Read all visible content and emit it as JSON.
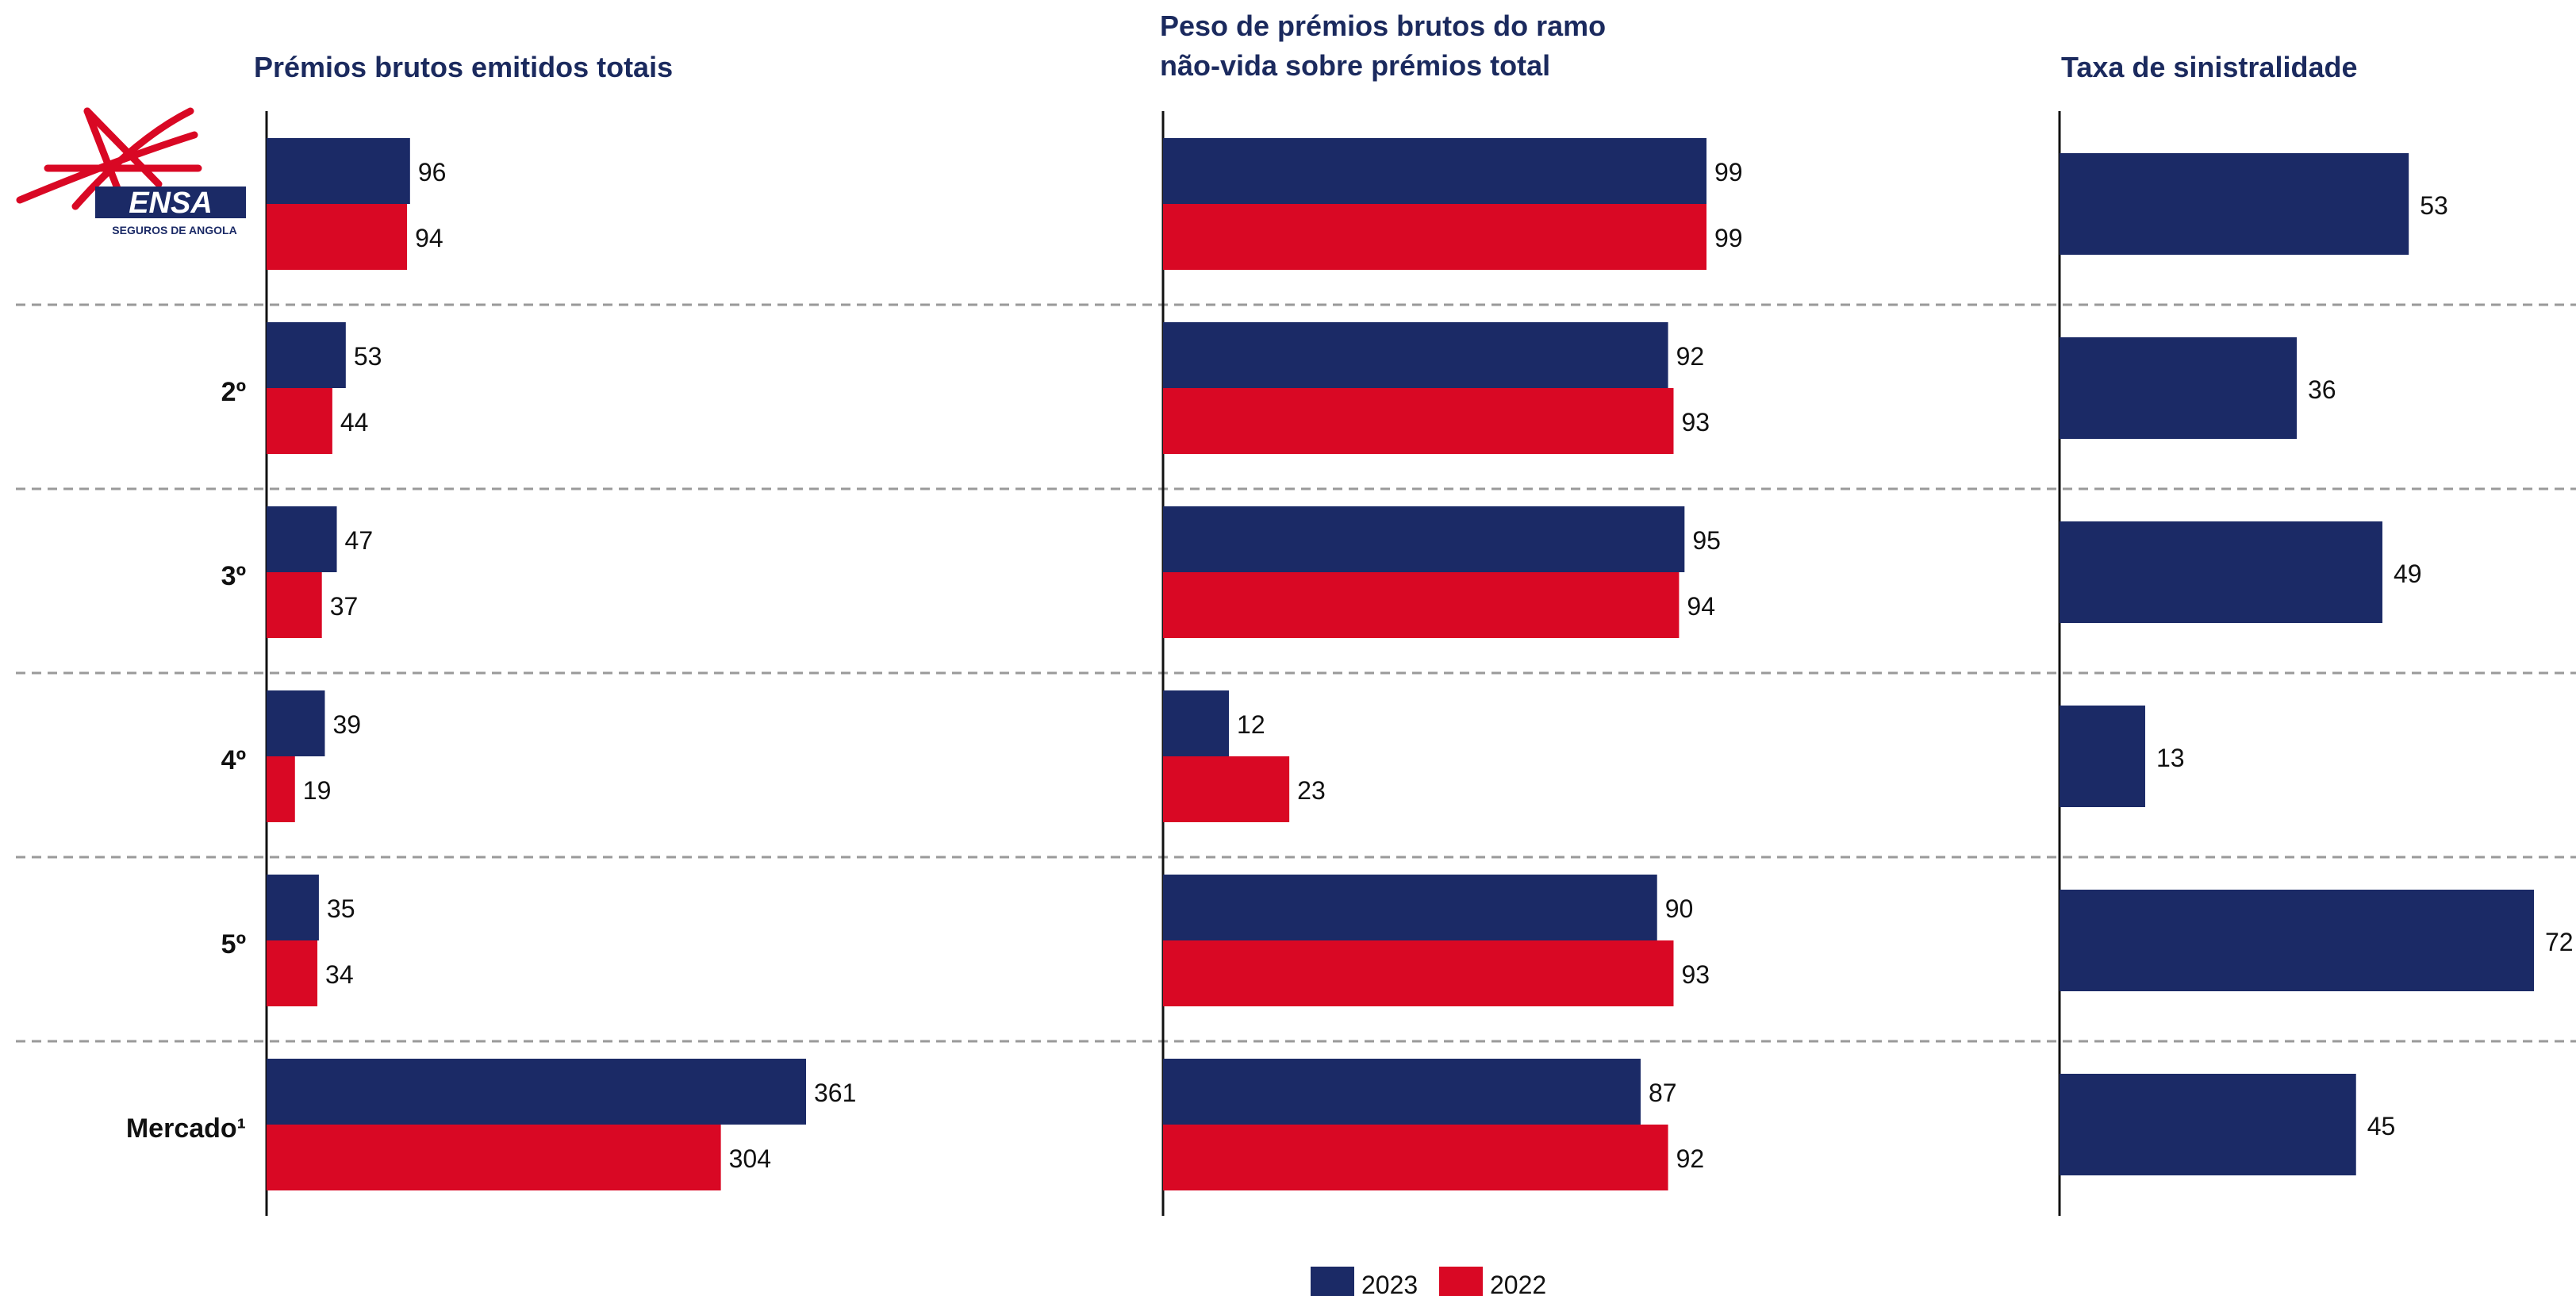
{
  "colors": {
    "2023": "#1b2a66",
    "2022": "#d90824",
    "divider": "#9a9a9a",
    "axis": "#111111",
    "title": "#1b2a5e"
  },
  "logo": {
    "name": "ENSA",
    "subtitle": "SEGUROS DE ANGOLA"
  },
  "chart_data": [
    {
      "type": "bar",
      "orientation": "horizontal",
      "title": "Prémios brutos emitidos totais",
      "categories": [
        "ENSA",
        "2º",
        "3º",
        "4º",
        "5º",
        "Mercado¹"
      ],
      "series": [
        {
          "name": "2023",
          "values": [
            96,
            53,
            47,
            39,
            35,
            361
          ]
        },
        {
          "name": "2022",
          "values": [
            94,
            44,
            37,
            19,
            34,
            304
          ]
        }
      ],
      "xlim": [
        0,
        380
      ]
    },
    {
      "type": "bar",
      "orientation": "horizontal",
      "title": [
        "Peso de prémios brutos do ramo",
        "não-vida sobre prémios total"
      ],
      "categories": [
        "ENSA",
        "2º",
        "3º",
        "4º",
        "5º",
        "Mercado¹"
      ],
      "series": [
        {
          "name": "2023",
          "values": [
            99,
            92,
            95,
            12,
            90,
            87
          ]
        },
        {
          "name": "2022",
          "values": [
            99,
            93,
            94,
            23,
            93,
            92
          ]
        }
      ],
      "xlim": [
        0,
        160
      ]
    },
    {
      "type": "bar",
      "orientation": "horizontal",
      "title": "Taxa de sinistralidade",
      "categories": [
        "ENSA",
        "2º",
        "3º",
        "4º",
        "5º",
        "Mercado¹"
      ],
      "series": [
        {
          "name": "2023",
          "values": [
            53,
            36,
            49,
            13,
            72,
            45
          ]
        }
      ],
      "xlim": [
        0,
        72
      ]
    }
  ],
  "legend": [
    {
      "label": "2023",
      "color": "#1b2a66"
    },
    {
      "label": "2022",
      "color": "#d90824"
    }
  ]
}
